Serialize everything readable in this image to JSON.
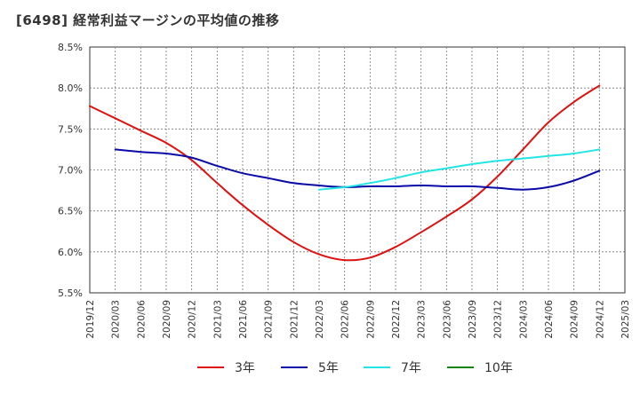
{
  "chart_data": {
    "type": "line",
    "title": "[6498]  経常利益マージンの平均値の推移",
    "xlabel": "",
    "ylabel": "",
    "ylim": [
      5.5,
      8.5
    ],
    "y_ticks": [
      "5.5%",
      "6.0%",
      "6.5%",
      "7.0%",
      "7.5%",
      "8.0%",
      "8.5%"
    ],
    "y_tick_values": [
      5.5,
      6.0,
      6.5,
      7.0,
      7.5,
      8.0,
      8.5
    ],
    "categories": [
      "2019/12",
      "2020/03",
      "2020/06",
      "2020/09",
      "2020/12",
      "2021/03",
      "2021/06",
      "2021/09",
      "2021/12",
      "2022/03",
      "2022/06",
      "2022/09",
      "2022/12",
      "2023/03",
      "2023/06",
      "2023/09",
      "2023/12",
      "2024/03",
      "2024/06",
      "2024/09",
      "2024/12",
      "2025/03"
    ],
    "grid": true,
    "legend_position": "bottom",
    "series": [
      {
        "name": "3年",
        "color": "#dd1111",
        "values": [
          7.78,
          7.63,
          7.48,
          7.33,
          7.12,
          6.84,
          6.57,
          6.33,
          6.12,
          5.97,
          5.9,
          5.93,
          6.06,
          6.24,
          6.43,
          6.64,
          6.92,
          7.25,
          7.58,
          7.83,
          8.03,
          null
        ]
      },
      {
        "name": "5年",
        "color": "#0a0aa8",
        "values": [
          null,
          7.25,
          7.22,
          7.2,
          7.15,
          7.05,
          6.96,
          6.9,
          6.84,
          6.81,
          6.79,
          6.8,
          6.8,
          6.81,
          6.8,
          6.8,
          6.78,
          6.76,
          6.79,
          6.87,
          6.99,
          null
        ]
      },
      {
        "name": "7年",
        "color": "#22e5e5",
        "values": [
          null,
          null,
          null,
          null,
          null,
          null,
          null,
          null,
          null,
          6.76,
          6.79,
          6.84,
          6.9,
          6.97,
          7.02,
          7.07,
          7.11,
          7.14,
          7.17,
          7.2,
          7.25,
          null
        ]
      },
      {
        "name": "10年",
        "color": "#118811",
        "values": [
          null,
          null,
          null,
          null,
          null,
          null,
          null,
          null,
          null,
          null,
          null,
          null,
          null,
          null,
          null,
          null,
          null,
          null,
          null,
          null,
          null,
          null
        ]
      }
    ]
  }
}
